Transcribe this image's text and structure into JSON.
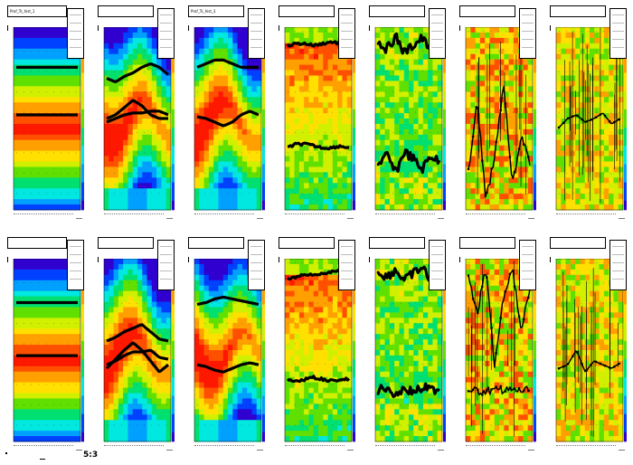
{
  "footer_text": "5:3",
  "panel_titles": [
    "Prof_Ts_hist_1",
    "",
    "Prof_Ts_hist_3",
    "",
    "",
    "",
    ""
  ],
  "colors": {
    "palette": [
      "#3000d0",
      "#0040ff",
      "#00a0ff",
      "#00e8e0",
      "#00e070",
      "#60e000",
      "#d0f000",
      "#ffe000",
      "#ffa000",
      "#ff5000",
      "#ff1800"
    ],
    "profile": "#000000"
  },
  "chart_data": [
    {
      "type": "heatmap",
      "title": "Prof_Ts_hist_1",
      "kind": "smooth",
      "profile_lines": [
        {
          "name": "",
          "values": [
            0.22,
            0.22,
            0.22,
            0.22,
            0.22,
            0.22,
            0.22,
            0.22
          ]
        },
        {
          "name": "",
          "values": [
            0.48,
            0.48,
            0.48,
            0.48,
            0.48,
            0.48,
            0.48,
            0.48
          ]
        }
      ]
    },
    {
      "type": "heatmap",
      "title": "",
      "kind": "wave",
      "profile_lines": [
        {
          "name": "",
          "values": [
            0.28,
            0.3,
            0.27,
            0.25,
            0.22,
            0.2,
            0.22,
            0.26
          ]
        },
        {
          "name": "",
          "values": [
            0.5,
            0.48,
            0.44,
            0.4,
            0.43,
            0.48,
            0.5,
            0.5
          ]
        },
        {
          "name": "",
          "values": [
            0.52,
            0.5,
            0.48,
            0.47,
            0.47,
            0.46,
            0.46,
            0.48
          ]
        }
      ]
    },
    {
      "type": "heatmap",
      "title": "Prof_Ts_hist_3",
      "kind": "wave",
      "profile_lines": [
        {
          "name": "",
          "values": [
            0.22,
            0.2,
            0.18,
            0.18,
            0.2,
            0.22,
            0.22,
            0.22
          ]
        },
        {
          "name": "",
          "values": [
            0.49,
            0.5,
            0.52,
            0.54,
            0.52,
            0.48,
            0.46,
            0.48
          ]
        }
      ]
    },
    {
      "type": "heatmap",
      "title": "",
      "kind": "noisy",
      "profile_lines": [
        {
          "name": "",
          "values": [
            0.1,
            0.09,
            0.09,
            0.1,
            0.09,
            0.08,
            0.09,
            0.1
          ]
        },
        {
          "name": "",
          "values": [
            0.66,
            0.64,
            0.64,
            0.65,
            0.66,
            0.66,
            0.65,
            0.66
          ]
        }
      ]
    },
    {
      "type": "heatmap",
      "title": "",
      "kind": "noisy_green",
      "profile_lines": [
        {
          "name": "",
          "values": [
            0.08,
            0.12,
            0.05,
            0.14,
            0.1,
            0.06,
            0.12,
            0.09
          ]
        },
        {
          "name": "",
          "values": [
            0.75,
            0.7,
            0.8,
            0.68,
            0.72,
            0.78,
            0.7,
            0.74
          ]
        }
      ]
    },
    {
      "type": "heatmap",
      "title": "",
      "kind": "speckle",
      "profile_lines": [
        {
          "name": "",
          "values": [
            0.8,
            0.4,
            0.95,
            0.7,
            0.3,
            0.85,
            0.6,
            0.75
          ]
        }
      ]
    },
    {
      "type": "heatmap",
      "title": "",
      "kind": "sparse",
      "profile_lines": [
        {
          "name": "",
          "values": [
            0.55,
            0.5,
            0.48,
            0.52,
            0.5,
            0.47,
            0.53,
            0.5
          ]
        }
      ]
    },
    {
      "type": "heatmap",
      "title": "",
      "kind": "smooth",
      "profile_lines": [
        {
          "name": "",
          "values": [
            0.24,
            0.24,
            0.24,
            0.24,
            0.24,
            0.24,
            0.24,
            0.24
          ]
        },
        {
          "name": "",
          "values": [
            0.53,
            0.53,
            0.53,
            0.53,
            0.53,
            0.53,
            0.53,
            0.53
          ]
        }
      ]
    },
    {
      "type": "heatmap",
      "title": "",
      "kind": "wave",
      "profile_lines": [
        {
          "name": "",
          "values": [
            0.45,
            0.43,
            0.4,
            0.38,
            0.36,
            0.4,
            0.44,
            0.45
          ]
        },
        {
          "name": "",
          "values": [
            0.6,
            0.55,
            0.5,
            0.46,
            0.5,
            0.56,
            0.62,
            0.58
          ]
        },
        {
          "name": "",
          "values": [
            0.58,
            0.56,
            0.53,
            0.51,
            0.51,
            0.5,
            0.54,
            0.55
          ]
        }
      ]
    },
    {
      "type": "heatmap",
      "title": "",
      "kind": "wave",
      "profile_lines": [
        {
          "name": "",
          "values": [
            0.25,
            0.24,
            0.22,
            0.21,
            0.22,
            0.23,
            0.24,
            0.25
          ]
        },
        {
          "name": "",
          "values": [
            0.58,
            0.59,
            0.61,
            0.62,
            0.6,
            0.58,
            0.57,
            0.58
          ]
        }
      ]
    },
    {
      "type": "heatmap",
      "title": "",
      "kind": "noisy",
      "profile_lines": [
        {
          "name": "",
          "values": [
            0.11,
            0.1,
            0.09,
            0.09,
            0.08,
            0.07,
            0.06,
            0.07
          ]
        },
        {
          "name": "",
          "values": [
            0.66,
            0.67,
            0.66,
            0.65,
            0.66,
            0.67,
            0.66,
            0.66
          ]
        }
      ]
    },
    {
      "type": "heatmap",
      "title": "",
      "kind": "noisy_green",
      "profile_lines": [
        {
          "name": "",
          "values": [
            0.07,
            0.1,
            0.06,
            0.12,
            0.08,
            0.05,
            0.11,
            0.08
          ]
        },
        {
          "name": "",
          "values": [
            0.72,
            0.7,
            0.74,
            0.71,
            0.73,
            0.7,
            0.72,
            0.71
          ]
        }
      ]
    },
    {
      "type": "heatmap",
      "title": "",
      "kind": "speckle",
      "profile_lines": [
        {
          "name": "",
          "values": [
            0.1,
            0.3,
            0.05,
            0.6,
            0.2,
            0.05,
            0.4,
            0.15
          ]
        },
        {
          "name": "",
          "values": [
            0.72,
            0.72,
            0.72,
            0.72,
            0.72,
            0.72,
            0.72,
            0.72
          ]
        }
      ]
    },
    {
      "type": "heatmap",
      "title": "",
      "kind": "sparse",
      "profile_lines": [
        {
          "name": "",
          "values": [
            0.6,
            0.58,
            0.5,
            0.62,
            0.56,
            0.58,
            0.6,
            0.57
          ]
        }
      ]
    }
  ]
}
